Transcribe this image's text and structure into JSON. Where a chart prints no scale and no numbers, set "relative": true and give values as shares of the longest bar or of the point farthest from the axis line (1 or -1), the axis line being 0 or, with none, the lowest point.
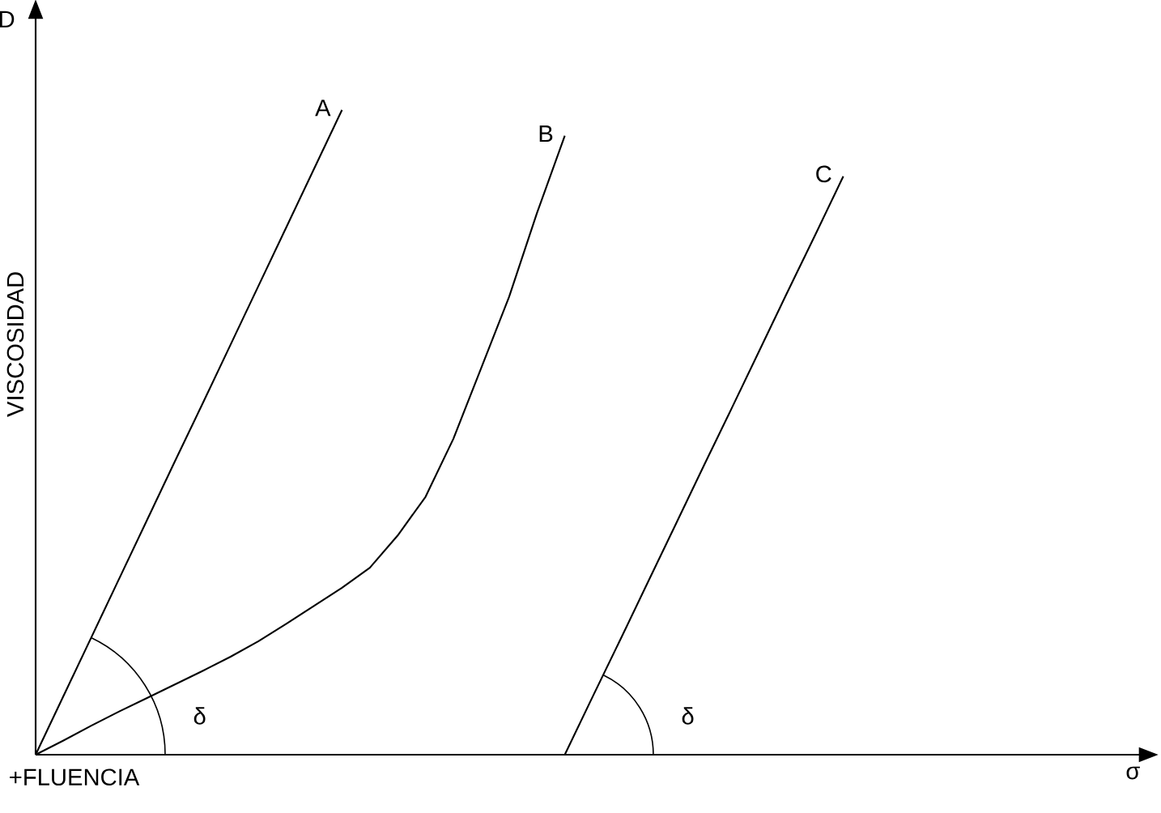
{
  "chart_data": {
    "type": "line",
    "relative": true,
    "xlabel": "σ",
    "ylabel": "VISCOSIDAD",
    "marker": "none",
    "line_style": "solid",
    "categories": [
      null,
      null,
      null,
      null,
      null,
      null,
      null,
      null,
      null,
      null,
      null,
      null,
      null,
      null,
      null,
      null,
      null,
      null,
      null,
      null,
      null,
      null,
      null,
      null,
      null,
      null,
      null,
      null,
      null,
      null,
      null,
      null,
      null,
      null,
      null,
      null,
      null,
      null,
      null,
      null,
      null
    ],
    "series": [
      {
        "name": "A",
        "color": "#000000",
        "values": [
          0,
          0.091,
          0.182,
          0.273,
          0.364,
          0.455,
          0.545,
          0.636,
          0.727,
          0.818,
          0.909,
          1,
          null,
          null,
          null,
          null,
          null,
          null,
          null,
          null,
          null,
          null,
          null,
          null,
          null,
          null,
          null,
          null,
          null,
          null,
          null,
          null,
          null,
          null,
          null,
          null,
          null,
          null,
          null,
          null,
          null
        ]
      },
      {
        "name": "B",
        "color": "#000000",
        "values": [
          0,
          0.022,
          0.045,
          0.067,
          0.088,
          0.109,
          0.13,
          0.152,
          0.176,
          0.203,
          0.231,
          0.259,
          0.29,
          0.34,
          0.4,
          0.49,
          0.6,
          0.71,
          0.84,
          0.96,
          null,
          null,
          null,
          null,
          null,
          null,
          null,
          null,
          null,
          null,
          null,
          null,
          null,
          null,
          null,
          null,
          null,
          null,
          null,
          null,
          null
        ]
      },
      {
        "name": "C",
        "color": "#000000",
        "values": [
          null,
          null,
          null,
          null,
          null,
          null,
          null,
          null,
          null,
          null,
          null,
          null,
          null,
          null,
          null,
          null,
          null,
          null,
          null,
          0,
          0.09,
          0.179,
          0.269,
          0.359,
          0.449,
          0.538,
          0.628,
          0.718,
          0.807,
          0.897,
          null,
          null,
          null,
          null,
          null,
          null,
          null,
          null,
          null,
          null,
          null
        ]
      }
    ],
    "annotations": [
      "D",
      "+FLUENCIA",
      "δ",
      "δ"
    ]
  }
}
